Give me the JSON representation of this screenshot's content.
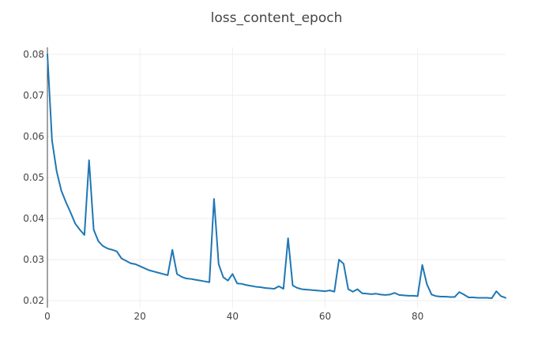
{
  "chart_data": {
    "type": "line",
    "title": "loss_content_epoch",
    "xlabel": "",
    "ylabel": "",
    "xlim": [
      0,
      99
    ],
    "ylim": [
      0.0183,
      0.0817
    ],
    "grid": true,
    "legend": "none",
    "line_color": "#1f77b4",
    "x_ticks": [
      0,
      20,
      40,
      60,
      80
    ],
    "x_tick_labels": [
      "0",
      "20",
      "40",
      "60",
      "80"
    ],
    "y_ticks": [
      0.02,
      0.03,
      0.04,
      0.05,
      0.06,
      0.07,
      0.08
    ],
    "y_tick_labels": [
      "0.02",
      "0.03",
      "0.04",
      "0.05",
      "0.06",
      "0.07",
      "0.08"
    ],
    "series": [
      {
        "x": [
          0,
          1,
          2,
          3,
          4,
          5,
          6,
          7,
          8,
          9,
          10,
          11,
          12,
          13,
          14,
          15,
          16,
          17,
          18,
          19,
          20,
          21,
          22,
          23,
          24,
          25,
          26,
          27,
          28,
          29,
          30,
          31,
          32,
          33,
          34,
          35,
          36,
          37,
          38,
          39,
          40,
          41,
          42,
          43,
          44,
          45,
          46,
          47,
          48,
          49,
          50,
          51,
          52,
          53,
          54,
          55,
          56,
          57,
          58,
          59,
          60,
          61,
          62,
          63,
          64,
          65,
          66,
          67,
          68,
          69,
          70,
          71,
          72,
          73,
          74,
          75,
          76,
          77,
          78,
          79,
          80,
          81,
          82,
          83,
          84,
          85,
          86,
          87,
          88,
          89,
          90,
          91,
          92,
          93,
          94,
          95,
          96,
          97,
          98,
          99
        ],
        "values": [
          0.08,
          0.059,
          0.0515,
          0.0468,
          0.044,
          0.0415,
          0.0388,
          0.0373,
          0.036,
          0.0542,
          0.0373,
          0.0345,
          0.0333,
          0.0327,
          0.0324,
          0.032,
          0.0303,
          0.0297,
          0.0291,
          0.0289,
          0.0284,
          0.0279,
          0.0274,
          0.0271,
          0.0268,
          0.0265,
          0.0262,
          0.0324,
          0.0265,
          0.0258,
          0.0254,
          0.0253,
          0.0251,
          0.0249,
          0.0247,
          0.0245,
          0.0448,
          0.0289,
          0.0257,
          0.0249,
          0.0265,
          0.0242,
          0.0241,
          0.0238,
          0.0236,
          0.0234,
          0.0233,
          0.0231,
          0.023,
          0.0229,
          0.0235,
          0.0229,
          0.0352,
          0.0237,
          0.0231,
          0.0228,
          0.0227,
          0.0226,
          0.0225,
          0.0224,
          0.0223,
          0.0225,
          0.0222,
          0.03,
          0.029,
          0.0228,
          0.0222,
          0.0228,
          0.0218,
          0.0217,
          0.0216,
          0.0217,
          0.0215,
          0.0214,
          0.0215,
          0.0219,
          0.0214,
          0.0213,
          0.0212,
          0.0212,
          0.0211,
          0.0287,
          0.024,
          0.0215,
          0.0211,
          0.021,
          0.021,
          0.0209,
          0.0209,
          0.0221,
          0.0215,
          0.0208,
          0.0208,
          0.0207,
          0.0207,
          0.0207,
          0.0206,
          0.0223,
          0.0211,
          0.0207
        ]
      }
    ]
  }
}
